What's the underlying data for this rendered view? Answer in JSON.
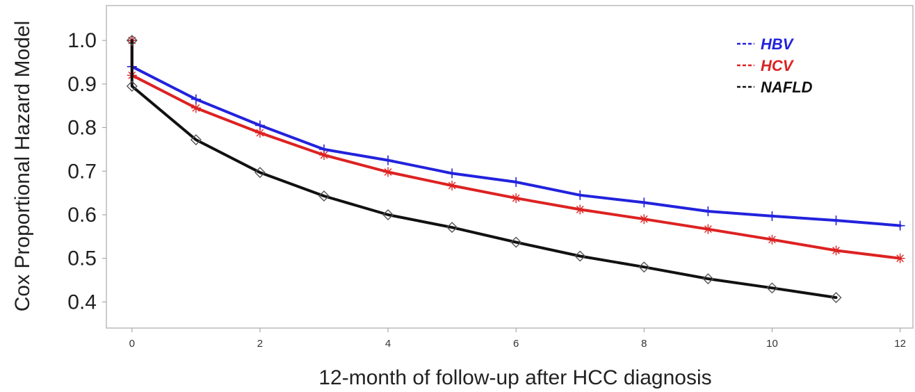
{
  "chart_data": {
    "type": "line",
    "title": "",
    "xlabel": "12-month of follow-up after HCC diagnosis",
    "ylabel": "Cox Proportional Hazard Model",
    "xlim": [
      -0.4,
      12.2
    ],
    "ylim": [
      0.34,
      1.08
    ],
    "x_ticks": [
      "0",
      "2",
      "4",
      "6",
      "8",
      "10",
      "12"
    ],
    "y_ticks": [
      "0.4",
      "0.5",
      "0.6",
      "0.7",
      "0.8",
      "0.9",
      "1.0"
    ],
    "legend_position": "top-right",
    "series": [
      {
        "name": "HBV",
        "color": "#2222dd",
        "marker": "plus",
        "x": [
          0,
          0,
          1,
          2,
          3,
          4,
          5,
          6,
          7,
          8,
          9,
          10,
          11,
          12
        ],
        "y": [
          1.0,
          0.94,
          0.865,
          0.805,
          0.75,
          0.725,
          0.695,
          0.675,
          0.645,
          0.628,
          0.608,
          0.597,
          0.587,
          0.575
        ]
      },
      {
        "name": "HCV",
        "color": "#dd2222",
        "marker": "star",
        "x": [
          0,
          0,
          1,
          2,
          3,
          4,
          5,
          6,
          7,
          8,
          9,
          10,
          11,
          12
        ],
        "y": [
          1.0,
          0.92,
          0.845,
          0.788,
          0.737,
          0.698,
          0.667,
          0.638,
          0.612,
          0.59,
          0.567,
          0.543,
          0.518,
          0.5
        ]
      },
      {
        "name": "NAFLD",
        "color": "#111111",
        "marker": "diamond",
        "x": [
          0,
          0,
          1,
          2,
          3,
          4,
          5,
          6,
          7,
          8,
          9,
          10,
          11
        ],
        "y": [
          1.0,
          0.895,
          0.772,
          0.697,
          0.643,
          0.6,
          0.571,
          0.537,
          0.505,
          0.48,
          0.453,
          0.432,
          0.41
        ]
      }
    ]
  }
}
